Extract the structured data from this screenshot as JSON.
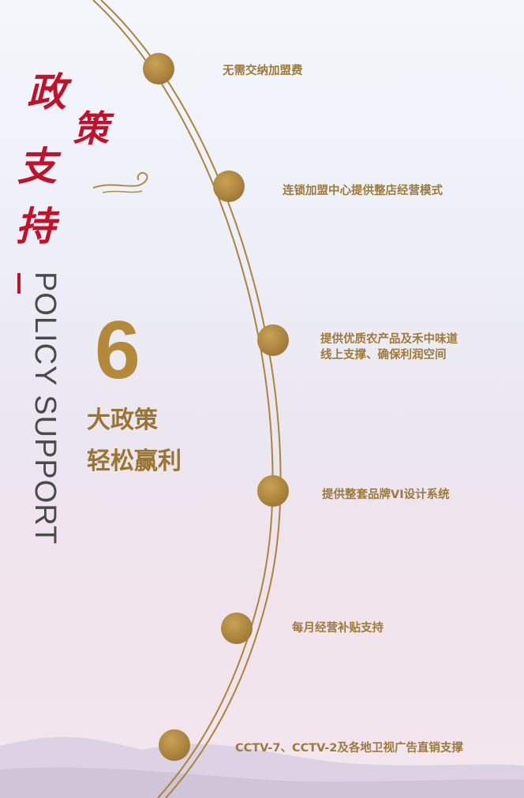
{
  "title_cn": [
    "政",
    "策",
    "支",
    "持"
  ],
  "title_en": "POLICY SUPPORT",
  "big_number": "6",
  "subtitle_lines": [
    "大政策",
    "轻松赢利"
  ],
  "policies": [
    {
      "text": "无需交纳加盟费"
    },
    {
      "text": "连锁加盟中心提供整店经营模式"
    },
    {
      "text": "提供优质农产品及禾中味道\n线上支撑、确保利润空间"
    },
    {
      "text": "提供整套品牌VI设计系统"
    },
    {
      "text": "每月经营补贴支持"
    },
    {
      "text": "CCTV-7、CCTV-2及各地卫视广告直销支撑"
    }
  ],
  "colors": {
    "accent": "#b48a3a",
    "title_red": "#c0122b",
    "gold_line": "#a8843d"
  }
}
